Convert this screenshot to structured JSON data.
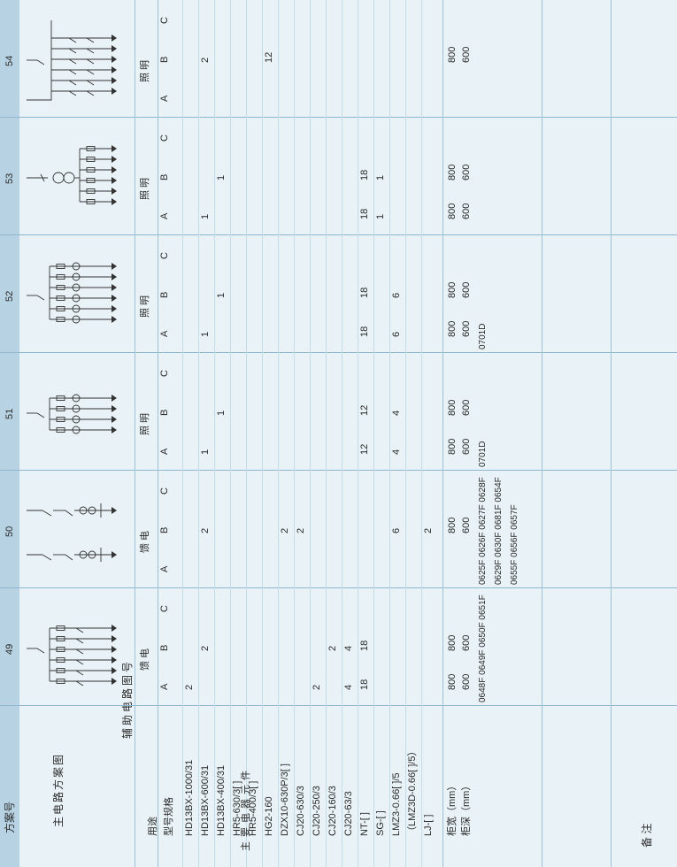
{
  "header": {
    "scheme_label": "方案号",
    "scheme_numbers": [
      "49",
      "50",
      "51",
      "52",
      "53",
      "54"
    ]
  },
  "labels": {
    "main_circuit": "主电路方案图",
    "purpose": "用途",
    "model_spec": "型号规格",
    "main_components_chars": [
      "主",
      "要",
      "电",
      "器",
      "元",
      "件"
    ],
    "cabinet_width": "柜宽（mm）",
    "cabinet_depth": "柜深（mm）",
    "aux_circuit": "辅助电路图号",
    "remarks": "备    注"
  },
  "components": [
    "HD13BX-1000/31",
    "HD13BX-600/31",
    "HD13BX-400/31",
    "HR5-630/3[ ]",
    "HR5-400/3[ ]",
    "HG2-160",
    "DZX10-630P/3[ ]",
    "CJ20-630/3",
    "CJ20-250/3",
    "CJ20-160/3",
    "CJ20-63/3",
    "NT-[ ]",
    "SG-[ ]",
    "LMZ3-0.66[ ]/5",
    "（LMZ3D-0.66[ ]/5）",
    "LJ-[ ]"
  ],
  "schemes": [
    {
      "number": "49",
      "purpose": "馈 电",
      "phases": [
        "A",
        "B",
        "C"
      ],
      "values": [
        {
          "component": "HD13BX-1000/31",
          "A": "2",
          "B": "",
          "C": ""
        },
        {
          "component": "HD13BX-600/31",
          "A": "",
          "B": "2",
          "C": ""
        },
        {
          "component": "CJ20-250/3",
          "A": "2",
          "B": "",
          "C": ""
        },
        {
          "component": "CJ20-160/3",
          "A": "",
          "B": "2",
          "C": ""
        },
        {
          "component": "CJ20-63/3",
          "A": "4",
          "B": "4",
          "C": ""
        },
        {
          "component": "NT-[ ]",
          "A": "18",
          "B": "18",
          "C": ""
        }
      ],
      "width": {
        "A": "800",
        "B": "800"
      },
      "depth": {
        "A": "600",
        "B": "600"
      },
      "aux_lines": [
        "0648F 0649F 0650F 0651F"
      ]
    },
    {
      "number": "50",
      "purpose": "馈 电",
      "phases": [
        "A",
        "B",
        "C"
      ],
      "values": [
        {
          "component": "HD13BX-600/31",
          "A": "",
          "B": "2",
          "C": ""
        },
        {
          "component": "DZX10-630P/3[ ]",
          "A": "",
          "B": "2",
          "C": ""
        },
        {
          "component": "CJ20-630/3",
          "A": "",
          "B": "2",
          "C": ""
        },
        {
          "component": "LMZ3-0.66[ ]/5",
          "A": "",
          "B": "6",
          "C": ""
        },
        {
          "component": "LJ-[ ]",
          "A": "",
          "B": "2",
          "C": ""
        }
      ],
      "width": {
        "B": "800"
      },
      "depth": {
        "B": "600"
      },
      "aux_lines": [
        "0625F 0626F 0627F 0628F",
        "0629F 0630F 0681F 0654F",
        "0655F 0656F 0657F"
      ]
    },
    {
      "number": "51",
      "purpose": "照 明",
      "phases": [
        "A",
        "B",
        "C"
      ],
      "values": [
        {
          "component": "HD13BX-600/31",
          "A": "1",
          "B": "",
          "C": ""
        },
        {
          "component": "HD13BX-400/31",
          "A": "",
          "B": "1",
          "C": ""
        },
        {
          "component": "NT-[ ]",
          "A": "12",
          "B": "12",
          "C": ""
        },
        {
          "component": "LMZ3-0.66[ ]/5",
          "A": "4",
          "B": "4",
          "C": ""
        }
      ],
      "width": {
        "A": "800",
        "B": "800"
      },
      "depth": {
        "A": "600",
        "B": "600"
      },
      "aux_lines": [
        "0701D"
      ]
    },
    {
      "number": "52",
      "purpose": "照 明",
      "phases": [
        "A",
        "B",
        "C"
      ],
      "values": [
        {
          "component": "HD13BX-600/31",
          "A": "1",
          "B": "",
          "C": ""
        },
        {
          "component": "HD13BX-400/31",
          "A": "",
          "B": "1",
          "C": ""
        },
        {
          "component": "NT-[ ]",
          "A": "18",
          "B": "18",
          "C": ""
        },
        {
          "component": "LMZ3-0.66[ ]/5",
          "A": "6",
          "B": "6",
          "C": ""
        }
      ],
      "width": {
        "A": "800",
        "B": "800"
      },
      "depth": {
        "A": "600",
        "B": "600"
      },
      "aux_lines": [
        "0701D"
      ]
    },
    {
      "number": "53",
      "purpose": "照 明",
      "phases": [
        "A",
        "B",
        "C"
      ],
      "values": [
        {
          "component": "HD13BX-600/31",
          "A": "1",
          "B": "",
          "C": ""
        },
        {
          "component": "HD13BX-400/31",
          "A": "",
          "B": "1",
          "C": ""
        },
        {
          "component": "NT-[ ]",
          "A": "18",
          "B": "18",
          "C": ""
        },
        {
          "component": "SG-[ ]",
          "A": "1",
          "B": "1",
          "C": ""
        }
      ],
      "width": {
        "A": "800",
        "B": "800"
      },
      "depth": {
        "A": "600",
        "B": "600"
      },
      "aux_lines": []
    },
    {
      "number": "54",
      "purpose": "照 明",
      "phases": [
        "A",
        "B",
        "C"
      ],
      "values": [
        {
          "component": "HD13BX-600/31",
          "A": "",
          "B": "2",
          "C": ""
        },
        {
          "component": "HG2-160",
          "A": "",
          "B": "12",
          "C": ""
        }
      ],
      "width": {
        "B": "800"
      },
      "depth": {
        "B": "600"
      },
      "aux_lines": []
    }
  ]
}
